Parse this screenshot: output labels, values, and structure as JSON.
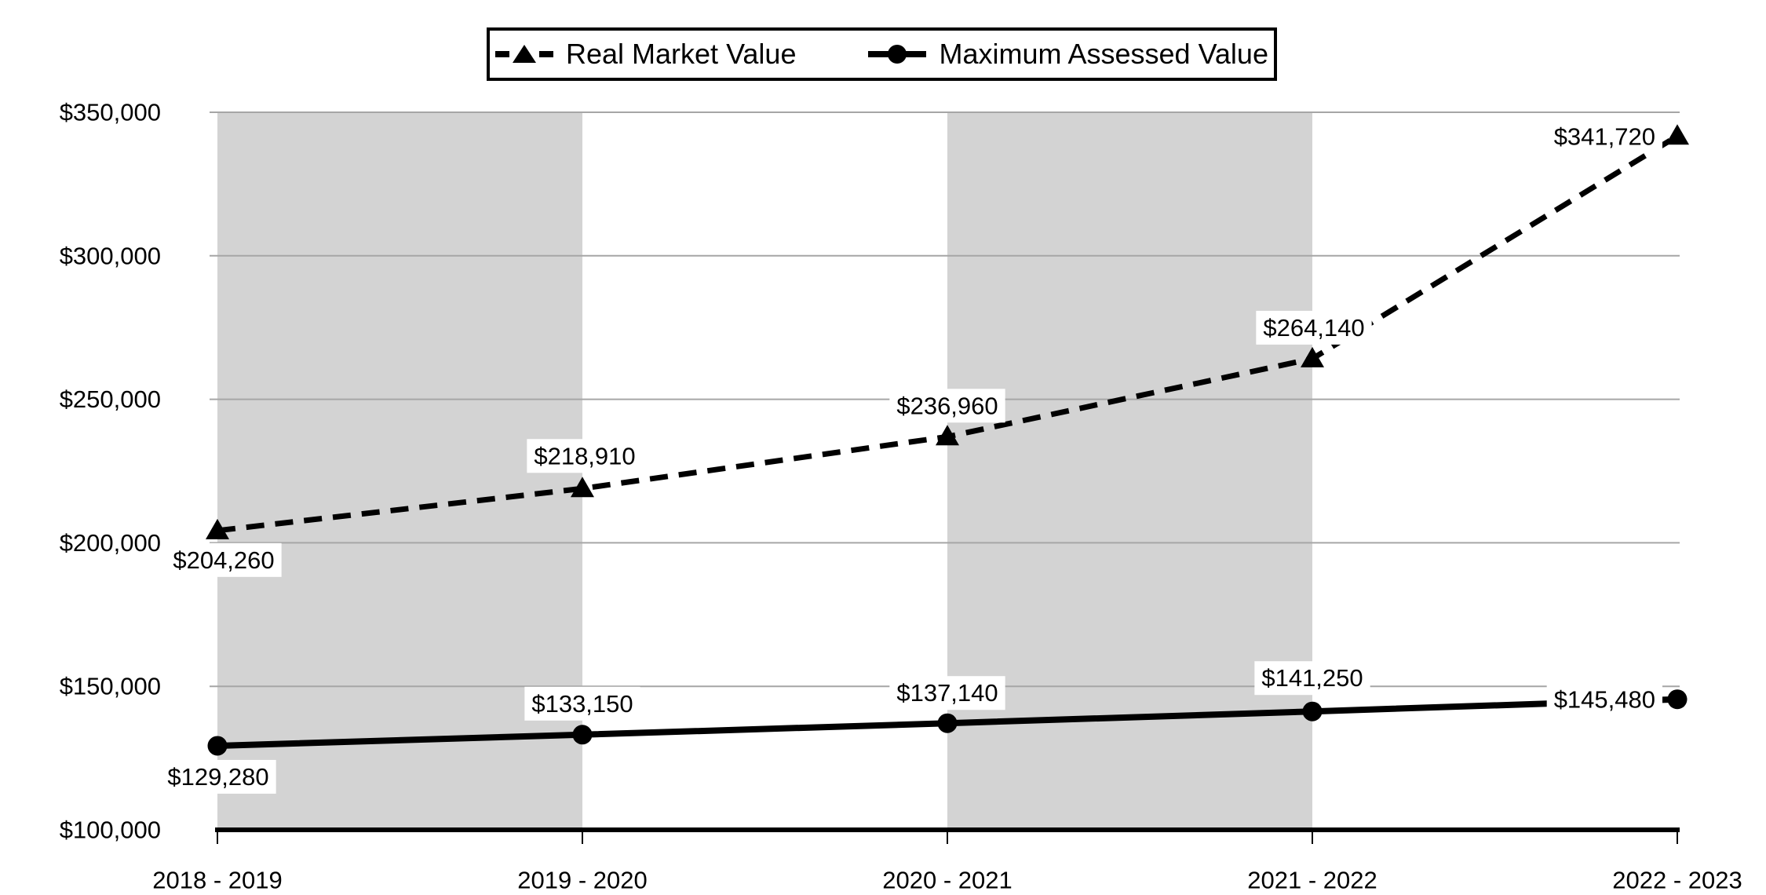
{
  "chart_data": {
    "type": "line",
    "title": "",
    "xlabel": "",
    "ylabel": "",
    "categories": [
      "2018 - 2019",
      "2019 - 2020",
      "2020 - 2021",
      "2021 - 2022",
      "2022 - 2023"
    ],
    "series": [
      {
        "name": "Real Market Value",
        "values": [
          204260,
          218910,
          236960,
          264140,
          341720
        ],
        "data_labels": [
          "$204,260",
          "$218,910",
          "$236,960",
          "$264,140",
          "$341,720"
        ],
        "line_style": "dashed",
        "marker": "triangle",
        "color": "#000000"
      },
      {
        "name": "Maximum Assessed Value",
        "values": [
          129280,
          133150,
          137140,
          141250,
          145480
        ],
        "data_labels": [
          "$129,280",
          "$133,150",
          "$137,140",
          "$141,250",
          "$145,480"
        ],
        "line_style": "solid",
        "marker": "circle",
        "color": "#000000"
      }
    ],
    "y_ticks": [
      {
        "value": 100000,
        "label": "$100,000"
      },
      {
        "value": 150000,
        "label": "$150,000"
      },
      {
        "value": 200000,
        "label": "$200,000"
      },
      {
        "value": 250000,
        "label": "$250,000"
      },
      {
        "value": 300000,
        "label": "$300,000"
      },
      {
        "value": 350000,
        "label": "$350,000"
      }
    ],
    "ylim": [
      100000,
      350000
    ],
    "grid": true,
    "legend_position": "top-center",
    "shaded_column_bands": [
      [
        0,
        1
      ],
      [
        2,
        3
      ]
    ],
    "band_color": "#d3d3d3",
    "gridline_color": "#a6a6a6",
    "axis_color": "#000000",
    "background_color": "#ffffff"
  }
}
